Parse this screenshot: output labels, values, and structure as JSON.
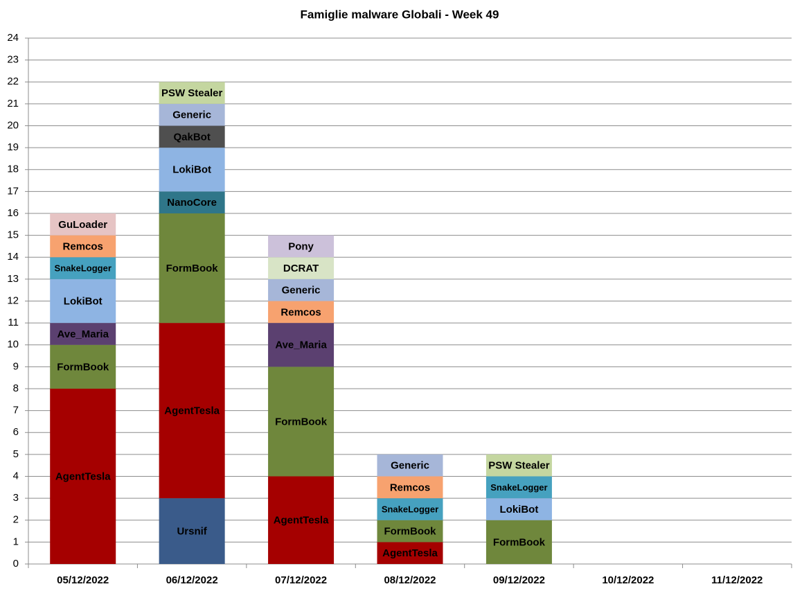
{
  "chart_data": {
    "type": "stacked-bar",
    "title": "Famiglie malware Globali - Week 49",
    "categories": [
      "05/12/2022",
      "06/12/2022",
      "07/12/2022",
      "08/12/2022",
      "09/12/2022",
      "10/12/2022",
      "11/12/2022"
    ],
    "series": [
      {
        "name": "Ursnif",
        "color": "#3a5b8a",
        "values": [
          null,
          3,
          null,
          null,
          null,
          null,
          null
        ]
      },
      {
        "name": "AgentTesla",
        "color": "#a50000",
        "values": [
          8,
          8,
          4,
          1,
          null,
          null,
          null
        ]
      },
      {
        "name": "FormBook",
        "color": "#6f873c",
        "values": [
          2,
          5,
          5,
          1,
          2,
          null,
          null
        ]
      },
      {
        "name": "Ave_Maria",
        "color": "#5b4070",
        "values": [
          1,
          null,
          2,
          null,
          null,
          null,
          null
        ]
      },
      {
        "name": "NanoCore",
        "color": "#2f7689",
        "values": [
          null,
          1,
          null,
          null,
          null,
          null,
          null
        ]
      },
      {
        "name": "LokiBot",
        "color": "#8eb4e3",
        "values": [
          2,
          2,
          null,
          null,
          1,
          null,
          null
        ]
      },
      {
        "name": "QakBot",
        "color": "#4f4f4f",
        "values": [
          null,
          1,
          null,
          null,
          null,
          null,
          null
        ]
      },
      {
        "name": "SnakeLogger",
        "color": "#46a1bf",
        "values": [
          1,
          null,
          null,
          1,
          1,
          null,
          null
        ]
      },
      {
        "name": "Remcos",
        "color": "#f7a26f",
        "values": [
          1,
          null,
          1,
          1,
          null,
          null,
          null
        ]
      },
      {
        "name": "Generic",
        "color": "#a6b6d8",
        "values": [
          null,
          1,
          1,
          1,
          null,
          null,
          null
        ]
      },
      {
        "name": "DCRAT",
        "color": "#d8e4c6",
        "values": [
          null,
          null,
          1,
          null,
          null,
          null,
          null
        ]
      },
      {
        "name": "Pony",
        "color": "#ccc1da",
        "values": [
          null,
          null,
          1,
          null,
          null,
          null,
          null
        ]
      },
      {
        "name": "GuLoader",
        "color": "#e6c4c4",
        "values": [
          1,
          null,
          null,
          null,
          null,
          null,
          null
        ]
      },
      {
        "name": "PSW Stealer",
        "color": "#c4d6a0",
        "values": [
          null,
          1,
          null,
          null,
          1,
          null,
          null
        ]
      }
    ],
    "ylim": [
      0,
      24
    ],
    "yticks": [
      0,
      1,
      2,
      3,
      4,
      5,
      6,
      7,
      8,
      9,
      10,
      11,
      12,
      13,
      14,
      15,
      16,
      17,
      18,
      19,
      20,
      21,
      22,
      23,
      24
    ],
    "grid": true
  }
}
